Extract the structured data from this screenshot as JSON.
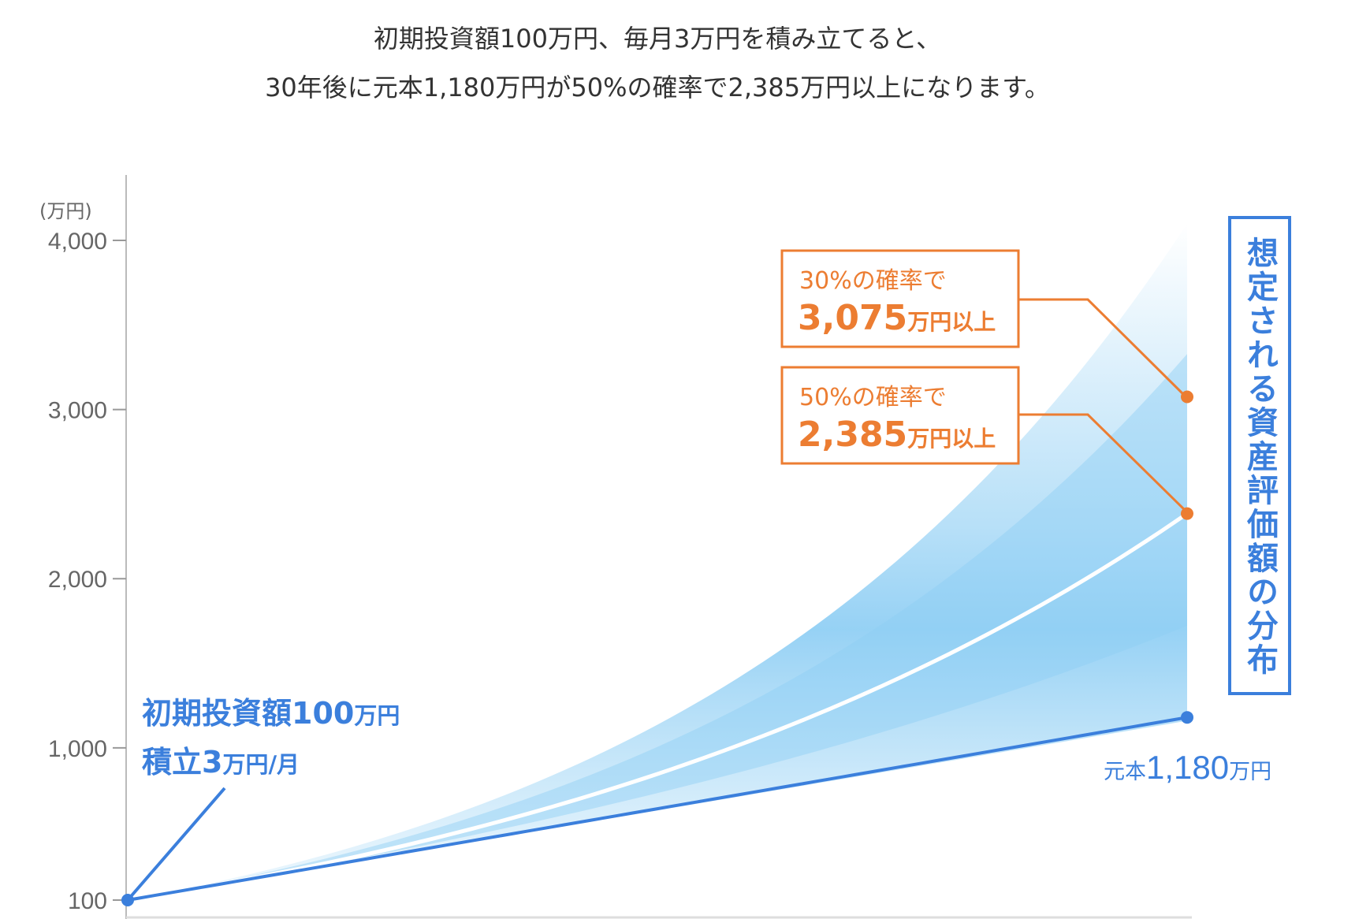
{
  "caption": {
    "line1": "初期投資額100万円、毎月3万円を積み立てると、",
    "line2": "30年後に元本1,180万円が50%の確率で2,385万円以上になります。"
  },
  "colors": {
    "blue": "#3b7fdc",
    "orange": "#ec7d32",
    "band": "#7cc6f2"
  },
  "chart_data": {
    "type": "area",
    "ylabel": "(万円)",
    "ylim": [
      100,
      4000
    ],
    "y_ticks": [
      {
        "value": 4000,
        "label": "4,000"
      },
      {
        "value": 3000,
        "label": "3,000"
      },
      {
        "value": 2000,
        "label": "2,000"
      },
      {
        "value": 1000,
        "label": "1,000"
      },
      {
        "value": 100,
        "label": "100"
      }
    ],
    "years": 30,
    "principal": {
      "start": 100,
      "end": 1180
    },
    "median_end": 2385,
    "p30_end": 3075,
    "band_upper_end": 4100,
    "left_annotation": {
      "line1_a": "初期投資額",
      "line1_num": "100",
      "line1_unit": "万円",
      "line2_a": "積立",
      "line2_num": "3",
      "line2_unit": "万円/月"
    },
    "principal_label": {
      "prefix": "元本",
      "num": "1,180",
      "unit": "万円"
    },
    "callout_30": {
      "pct": "30",
      "pct_sign": "%",
      "tail": "の確率で",
      "value": "3,075",
      "unit": "万円以上"
    },
    "callout_50": {
      "pct": "50",
      "pct_sign": "%",
      "tail": "の確率で",
      "value": "2,385",
      "unit": "万円以上"
    },
    "distribution_label": "想定される資産評価額の分布"
  }
}
